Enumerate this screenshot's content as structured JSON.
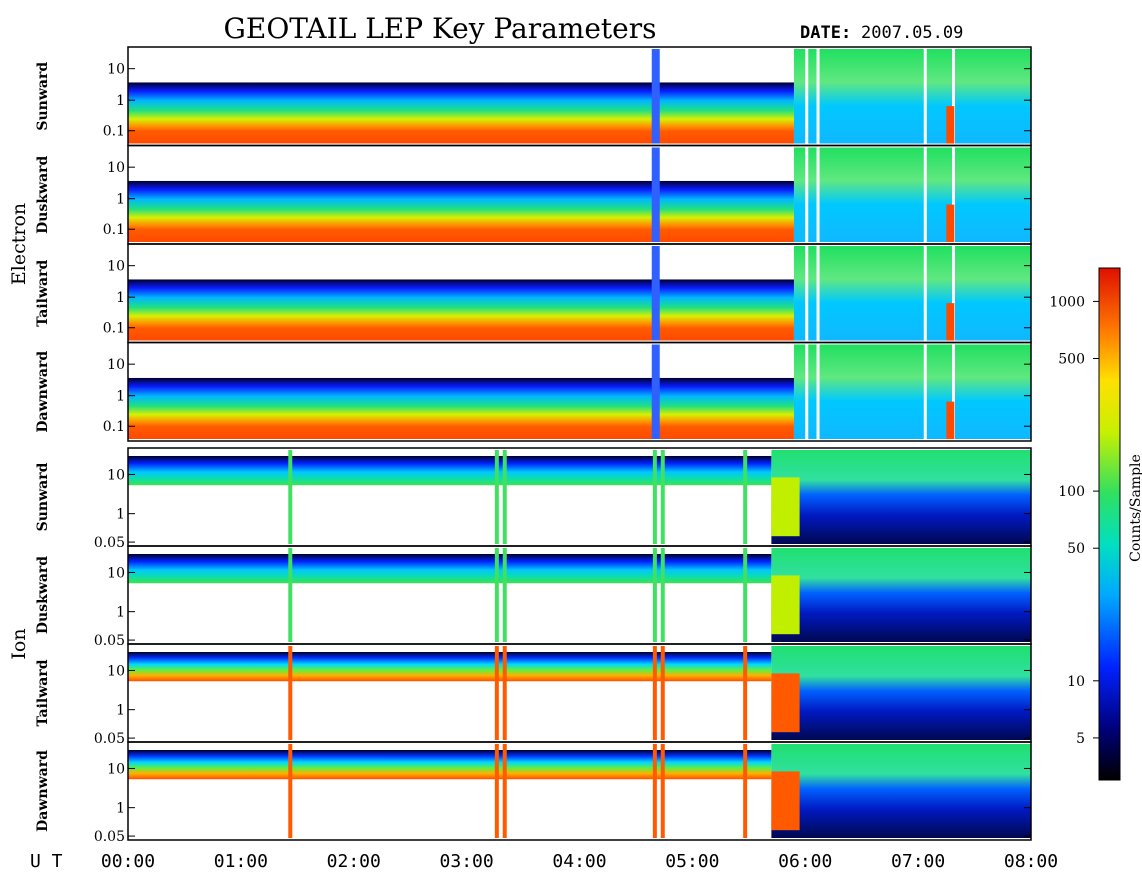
{
  "title": "GEOTAIL LEP Key Parameters",
  "date_label": "DATE:",
  "date_value": "2007.05.09",
  "ut_label": "U T",
  "colorbar_label": "Counts/Sample",
  "chart_data": {
    "type": "heatmap",
    "x_ticks": [
      "00:00",
      "01:00",
      "02:00",
      "03:00",
      "04:00",
      "05:00",
      "06:00",
      "07:00",
      "08:00"
    ],
    "x_range_hours": [
      0,
      8
    ],
    "groups": [
      {
        "name": "Electron",
        "panels": [
          {
            "label": "Sunward",
            "y_ticks": [
              "10",
              "1",
              "0.1"
            ]
          },
          {
            "label": "Duskward",
            "y_ticks": [
              "10",
              "1",
              "0.1"
            ]
          },
          {
            "label": "Tailward",
            "y_ticks": [
              "10",
              "1",
              "0.1"
            ]
          },
          {
            "label": "Dawnward",
            "y_ticks": [
              "10",
              "1",
              "0.1"
            ]
          }
        ]
      },
      {
        "name": "Ion",
        "panels": [
          {
            "label": "Sunward",
            "y_ticks": [
              "10",
              "1",
              "0.05"
            ]
          },
          {
            "label": "Duskward",
            "y_ticks": [
              "10",
              "1",
              "0.05"
            ]
          },
          {
            "label": "Tailward",
            "y_ticks": [
              "10",
              "1",
              "0.05"
            ]
          },
          {
            "label": "Dawnward",
            "y_ticks": [
              "10",
              "1",
              "0.05"
            ]
          }
        ]
      }
    ],
    "colorbar": {
      "scale": "log",
      "range": [
        3,
        1500
      ],
      "ticks": [
        "1000",
        "500",
        "100",
        "50",
        "10",
        "5"
      ],
      "tick_values": [
        1000,
        500,
        100,
        50,
        10,
        5
      ],
      "label": "Counts/Sample"
    }
  }
}
